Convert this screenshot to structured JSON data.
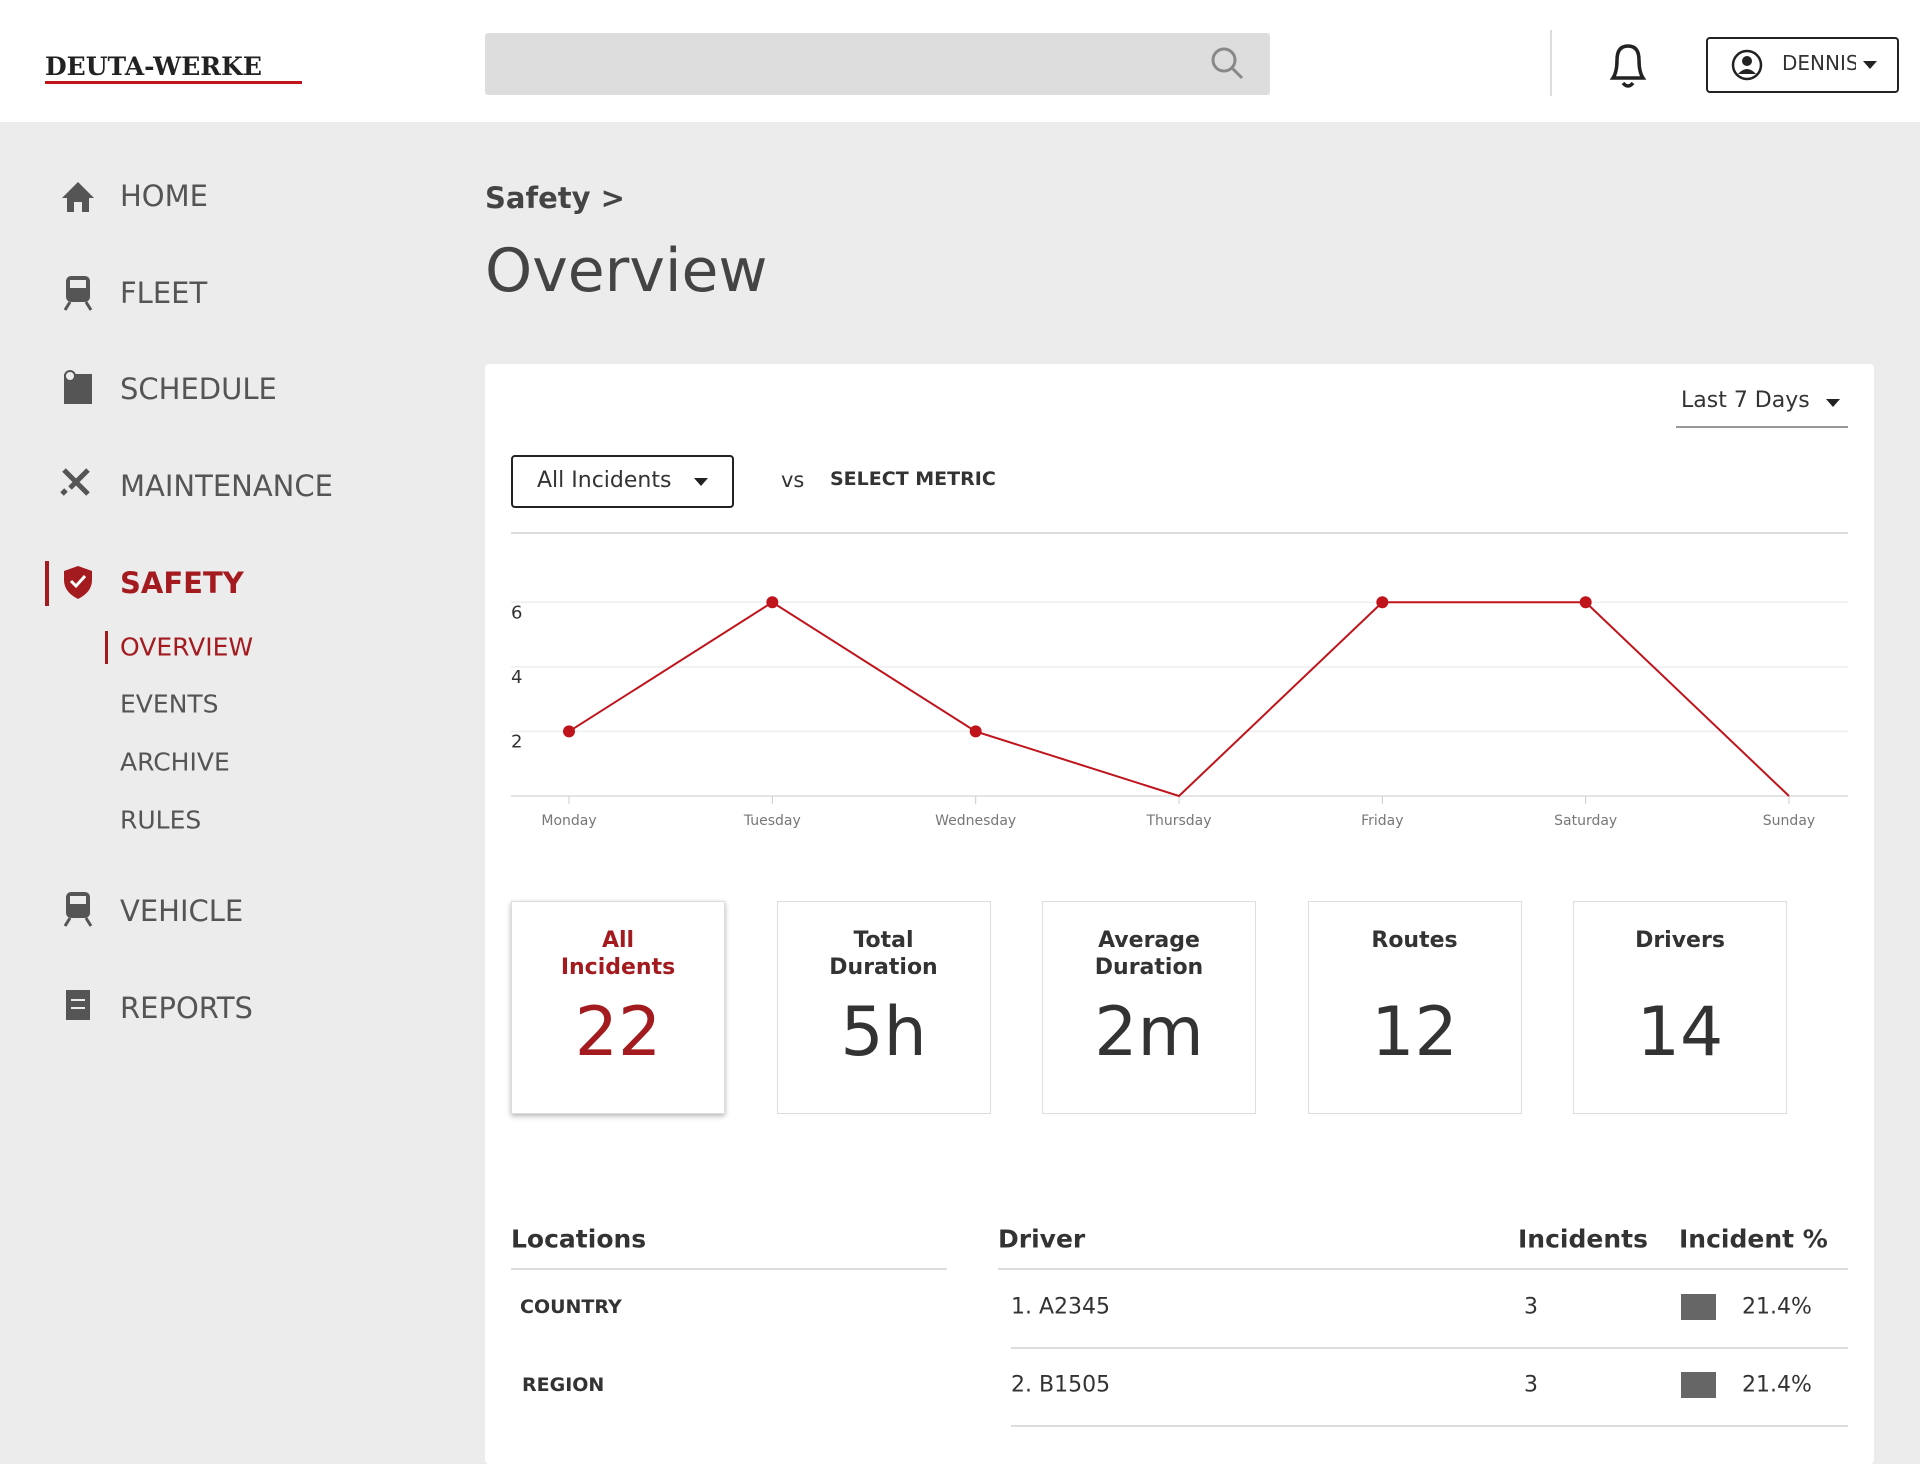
{
  "header": {
    "logo": "DEUTA-WERKE",
    "user": "DENNIS"
  },
  "nav": {
    "items": [
      "HOME",
      "FLEET",
      "SCHEDULE",
      "MAINTENANCE",
      "SAFETY",
      "VEHICLE",
      "REPORTS"
    ],
    "sub_items": [
      "OVERVIEW",
      "EVENTS",
      "ARCHIVE",
      "RULES"
    ]
  },
  "breadcrumb": "Safety >",
  "page_title": "Overview",
  "filters": {
    "range": "Last 7 Days",
    "metric": "All Incidents",
    "vs": "vs",
    "compare": "SELECT METRIC"
  },
  "chart": {
    "type": "line",
    "categories": [
      "Monday",
      "Tuesday",
      "Wednesday",
      "Thursday",
      "Friday",
      "Saturday",
      "Sunday"
    ],
    "values": [
      2,
      6,
      2,
      0,
      6,
      6,
      0
    ],
    "color": "#c0141c",
    "ylim": [
      0,
      7
    ],
    "yticks": [
      2,
      4,
      6
    ],
    "grid": true
  },
  "kpis": [
    {
      "label": "All Incidents",
      "value": 22,
      "value_label": "22"
    },
    {
      "label": "Total Duration",
      "value": 5,
      "value_label": "5h"
    },
    {
      "label": "Average Duration",
      "value": 2,
      "value_label": "2m"
    },
    {
      "label": "Routes",
      "value": 12,
      "value_label": "12"
    },
    {
      "label": "Drivers",
      "value": 14,
      "value_label": "14"
    }
  ],
  "locations": {
    "header": "Locations",
    "rows": [
      "COUNTRY",
      "REGION"
    ]
  },
  "drivers": {
    "headers": [
      "Driver",
      "Incidents",
      "Incident %"
    ],
    "rows": [
      [
        "1. A2345",
        "3",
        "21.4%"
      ],
      [
        "2. B1505",
        "3",
        "21.4%"
      ]
    ]
  }
}
